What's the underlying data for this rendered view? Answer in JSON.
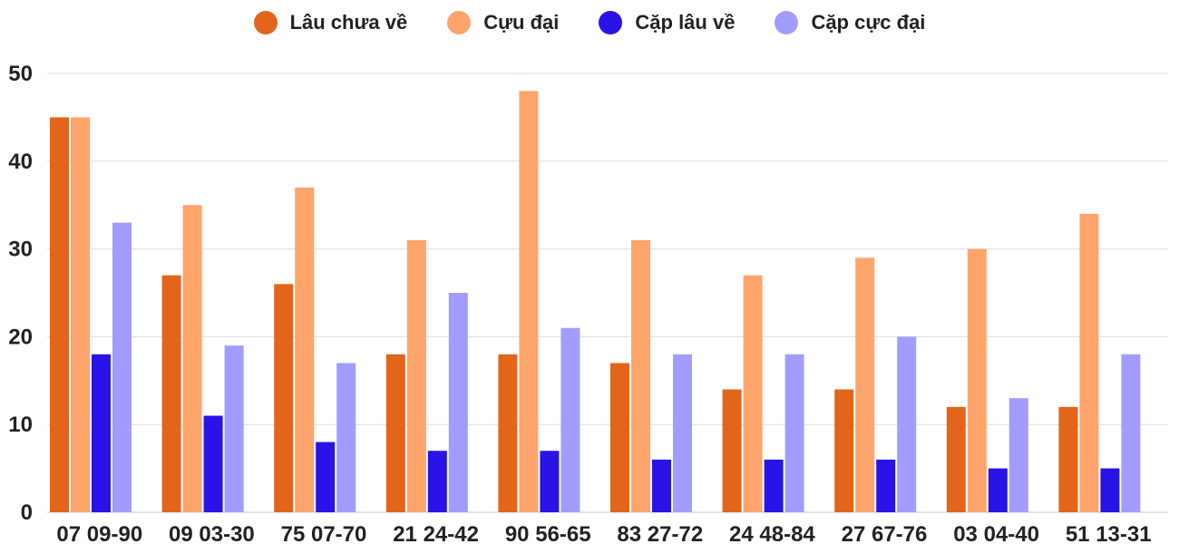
{
  "chart_data": {
    "type": "bar",
    "title": "",
    "xlabel": "",
    "ylabel": "",
    "ylim": [
      0,
      50
    ],
    "yticks": [
      "0",
      "10",
      "20",
      "30",
      "40",
      "50"
    ],
    "grid": true,
    "legend_position": "top",
    "categories": [
      "07",
      "09",
      "75",
      "21",
      "90",
      "83",
      "24",
      "27",
      "03",
      "51"
    ],
    "pair_labels": [
      "09-90",
      "03-30",
      "07-70",
      "24-42",
      "56-65",
      "27-72",
      "48-84",
      "67-76",
      "04-40",
      "13-31"
    ],
    "series": [
      {
        "name": "Lâu chưa về",
        "color": "#e2651b",
        "values": [
          45,
          27,
          26,
          18,
          18,
          17,
          14,
          14,
          12,
          12
        ]
      },
      {
        "name": "Cựu đại",
        "color": "#ffa46b",
        "values": [
          45,
          35,
          37,
          31,
          48,
          31,
          27,
          29,
          30,
          34
        ]
      },
      {
        "name": "Cặp lâu về",
        "color": "#2a13e6",
        "values": [
          18,
          11,
          8,
          7,
          7,
          6,
          6,
          6,
          5,
          5
        ]
      },
      {
        "name": "Cặp cực đại",
        "color": "#a39cff",
        "values": [
          33,
          19,
          17,
          25,
          21,
          18,
          18,
          20,
          13,
          18
        ]
      }
    ]
  }
}
